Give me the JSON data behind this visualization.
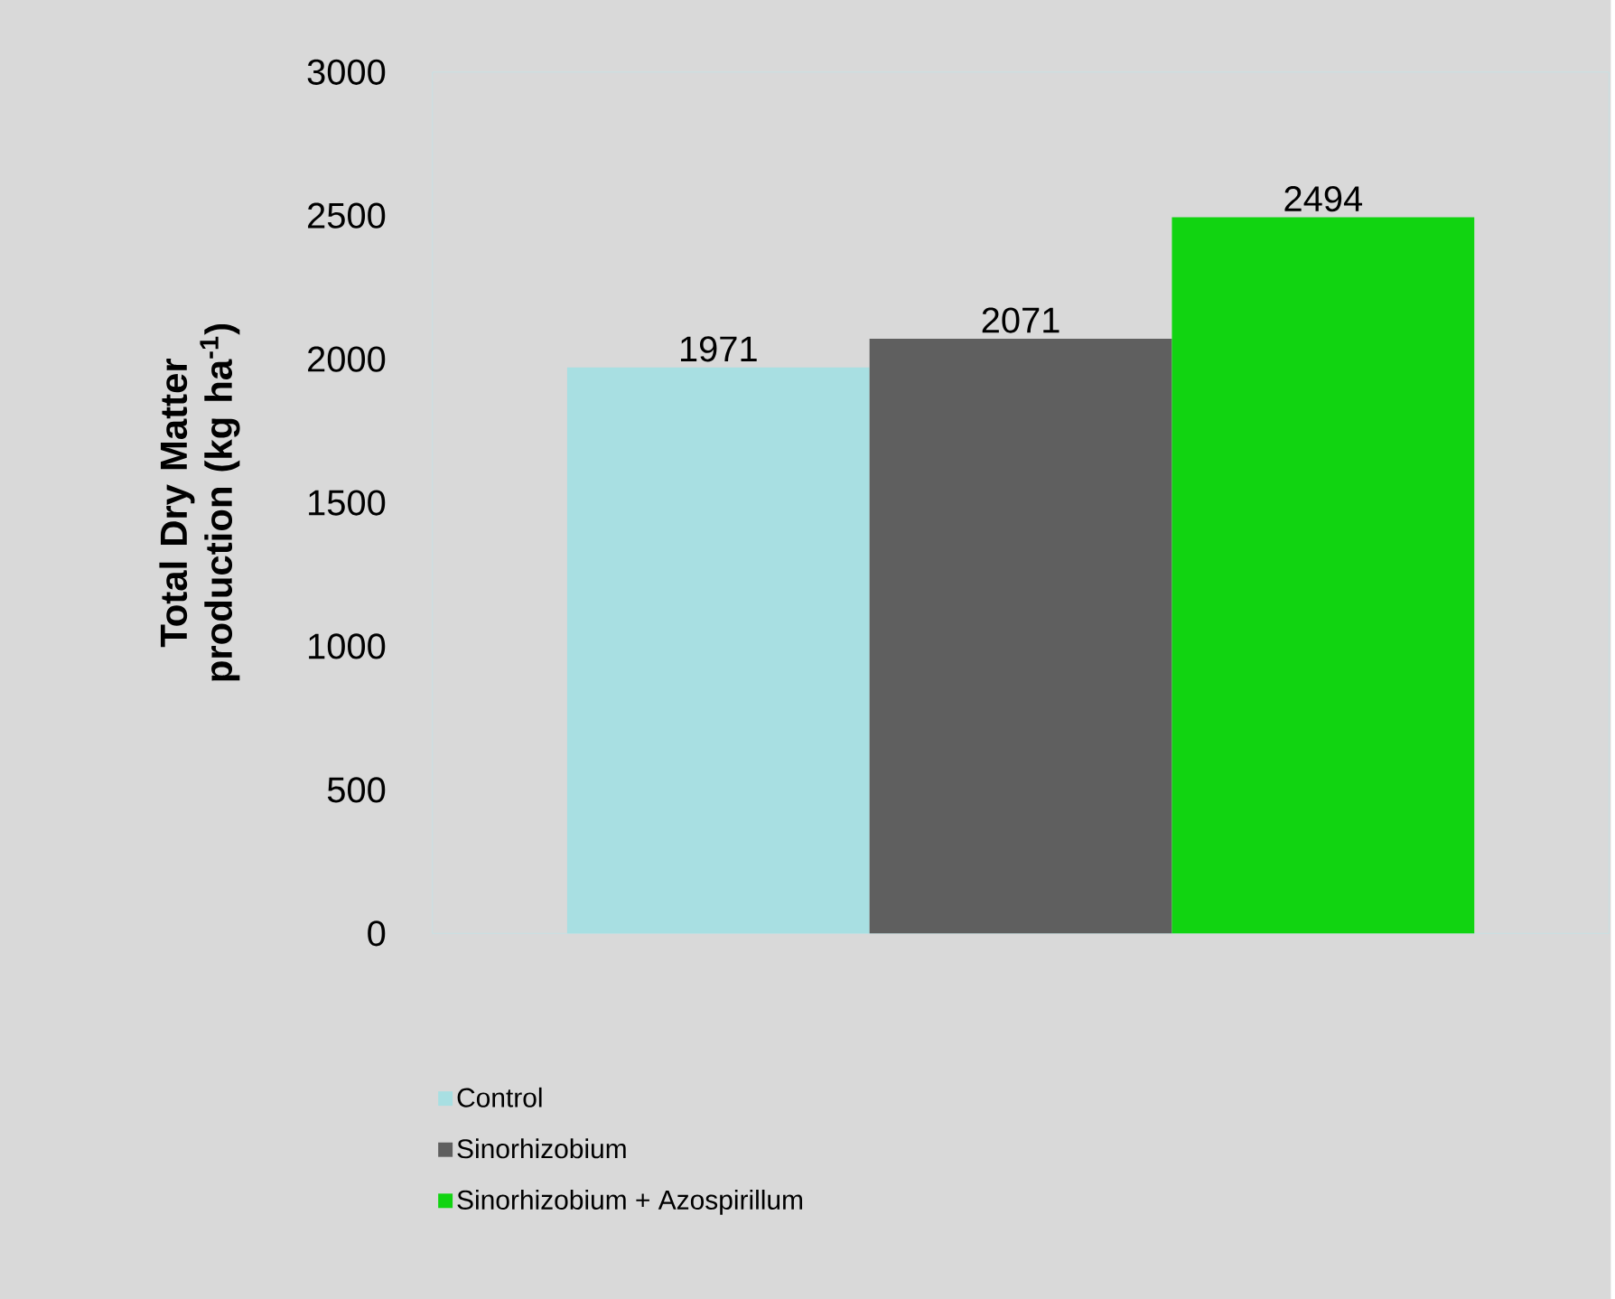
{
  "chart_data": {
    "type": "bar",
    "ylabel": "Total Dry Matter production (kg ha$^{-1}$)",
    "categories": [
      null
    ],
    "series": [
      {
        "name": "Control",
        "color": "#a8dfe2",
        "values": [
          1971
        ]
      },
      {
        "name": "Sinorhizobium",
        "color": "#5f5f5f",
        "values": [
          2071
        ]
      },
      {
        "name": "Sinorhizobium + Azospirillum",
        "color": "#11d411",
        "values": [
          2494
        ]
      }
    ],
    "ylim": [
      0,
      3000
    ],
    "yticks": [
      0,
      500,
      1000,
      1500,
      2000,
      2500,
      3000
    ],
    "data_labels": true,
    "grid": false,
    "legend": "bottom"
  }
}
